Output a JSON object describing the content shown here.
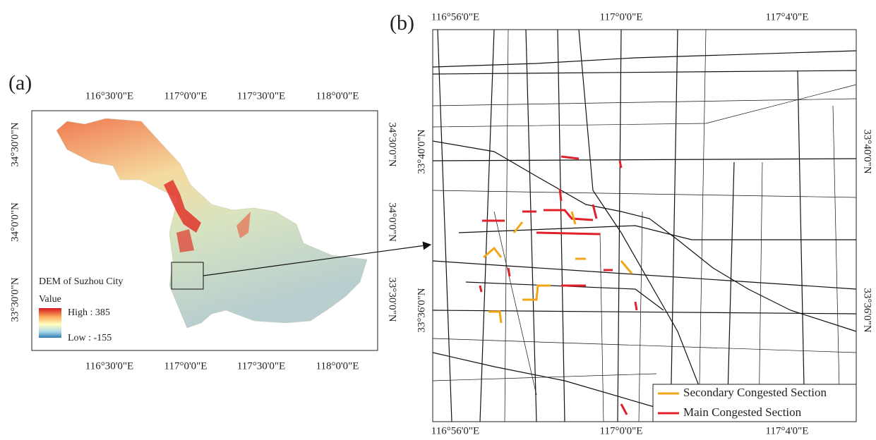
{
  "panel_a": {
    "label": "(a)",
    "top_ticks": [
      "116°30'0\"E",
      "117°0'0\"E",
      "117°30'0\"E",
      "118°0'0\"E"
    ],
    "bottom_ticks": [
      "116°30'0\"E",
      "117°0'0\"E",
      "117°30'0\"E",
      "118°0'0\"E"
    ],
    "left_ticks": [
      "34°30'0\"N",
      "34°0'0\"N",
      "33°30'0\"N"
    ],
    "right_ticks": [
      "34°30'0\"N",
      "34°0'0\"N",
      "33°30'0\"N"
    ],
    "legend": {
      "title": "DEM of Suzhou City",
      "subtitle": "Value",
      "high": "High : 385",
      "low": "Low : -155"
    }
  },
  "panel_b": {
    "label": "(b)",
    "top_ticks": [
      "116°56'0\"E",
      "117°0'0\"E",
      "117°4'0\"E"
    ],
    "bottom_ticks": [
      "116°56'0\"E",
      "117°0'0\"E",
      "117°4'0\"E"
    ],
    "left_ticks": [
      "33°40'0\"N",
      "33°36'0\"N"
    ],
    "right_ticks": [
      "33°40'0\"N",
      "33°36'0\"N"
    ],
    "legend": {
      "secondary": "Secondary Congested Section",
      "main": "Main Congested Section"
    }
  }
}
